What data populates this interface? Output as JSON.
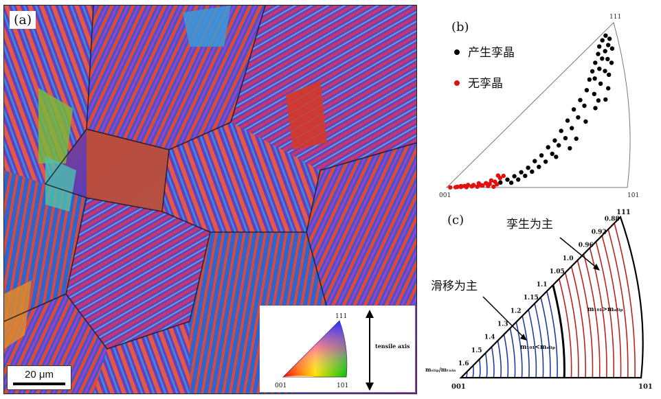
{
  "panel_a": {
    "label": "(a)",
    "scale_bar": "20 μm",
    "ipf_key": {
      "top": "111",
      "bottom_left": "001",
      "bottom_right": "101"
    },
    "axis_label": "tensile axis"
  },
  "panel_b": {
    "label": "(b)",
    "corners": {
      "top": "111",
      "left": "001",
      "right": "101"
    },
    "legend": [
      {
        "text": "产生孪晶",
        "color": "#000000"
      },
      {
        "text": "无孪晶",
        "color": "#e01010"
      }
    ],
    "points_twin": [
      [
        0.95,
        0.97
      ],
      [
        0.93,
        0.96
      ],
      [
        0.97,
        0.93
      ],
      [
        0.91,
        0.94
      ],
      [
        0.96,
        0.9
      ],
      [
        0.94,
        0.88
      ],
      [
        0.9,
        0.9
      ],
      [
        0.98,
        0.86
      ],
      [
        0.92,
        0.85
      ],
      [
        0.88,
        0.86
      ],
      [
        0.95,
        0.82
      ],
      [
        0.9,
        0.8
      ],
      [
        0.86,
        0.82
      ],
      [
        0.97,
        0.78
      ],
      [
        0.93,
        0.76
      ],
      [
        0.87,
        0.76
      ],
      [
        0.84,
        0.78
      ],
      [
        0.95,
        0.72
      ],
      [
        0.9,
        0.7
      ],
      [
        0.82,
        0.72
      ],
      [
        0.86,
        0.66
      ],
      [
        0.78,
        0.68
      ],
      [
        0.8,
        0.62
      ],
      [
        0.74,
        0.64
      ],
      [
        0.94,
        0.64
      ],
      [
        0.7,
        0.58
      ],
      [
        0.76,
        0.56
      ],
      [
        0.66,
        0.52
      ],
      [
        0.72,
        0.5
      ],
      [
        0.62,
        0.46
      ],
      [
        0.68,
        0.44
      ],
      [
        0.58,
        0.42
      ],
      [
        0.64,
        0.4
      ],
      [
        0.54,
        0.36
      ],
      [
        0.6,
        0.34
      ],
      [
        0.5,
        0.32
      ],
      [
        0.56,
        0.28
      ],
      [
        0.46,
        0.26
      ],
      [
        0.52,
        0.24
      ],
      [
        0.42,
        0.22
      ],
      [
        0.48,
        0.2
      ],
      [
        0.38,
        0.18
      ],
      [
        0.44,
        0.16
      ],
      [
        0.34,
        0.14
      ],
      [
        0.4,
        0.12
      ],
      [
        0.3,
        0.1
      ],
      [
        0.36,
        0.08
      ],
      [
        0.8,
        0.5
      ],
      [
        0.74,
        0.4
      ],
      [
        0.86,
        0.56
      ],
      [
        0.62,
        0.3
      ],
      [
        0.7,
        0.34
      ],
      [
        0.92,
        0.58
      ],
      [
        0.88,
        0.6
      ]
    ],
    "points_notwin": [
      [
        0.02,
        0.02
      ],
      [
        0.05,
        0.03
      ],
      [
        0.08,
        0.04
      ],
      [
        0.11,
        0.02
      ],
      [
        0.14,
        0.05
      ],
      [
        0.17,
        0.03
      ],
      [
        0.2,
        0.06
      ],
      [
        0.23,
        0.04
      ],
      [
        0.26,
        0.02
      ],
      [
        0.06,
        0.07
      ],
      [
        0.1,
        0.09
      ],
      [
        0.15,
        0.1
      ],
      [
        0.19,
        0.08
      ],
      [
        0.24,
        0.09
      ],
      [
        0.28,
        0.07
      ],
      [
        0.12,
        0.13
      ],
      [
        0.18,
        0.14
      ],
      [
        0.22,
        0.12
      ],
      [
        0.27,
        0.13
      ],
      [
        0.25,
        0.17
      ],
      [
        0.3,
        0.19
      ],
      [
        0.29,
        0.25
      ],
      [
        0.32,
        0.22
      ],
      [
        0.08,
        0.11
      ]
    ]
  },
  "panel_c": {
    "label": "(c)",
    "corners": {
      "top": "111",
      "left": "001",
      "right": "101"
    },
    "region_twin": "孪生为主",
    "region_slip": "滑移为主",
    "ratio_twin": "m₁₀₁>mₐₗᵢₚ",
    "ratio_slip": "m₁₀₁<mₛₗᵢₚ",
    "ratio_axis": "mₛₗᵢₚ/mₜᵤᵢₙ",
    "boundary": "1.0",
    "edge_ticks": [
      "1.6",
      "1.5",
      "1.4",
      "1.3",
      "1.2",
      "1.15",
      "1.1",
      "1.05",
      "1.0",
      "0.96",
      "0.92",
      "0.88"
    ],
    "colors": {
      "slip": "#1f3c9c",
      "twin": "#c0201c",
      "boundary": "#000000"
    }
  }
}
